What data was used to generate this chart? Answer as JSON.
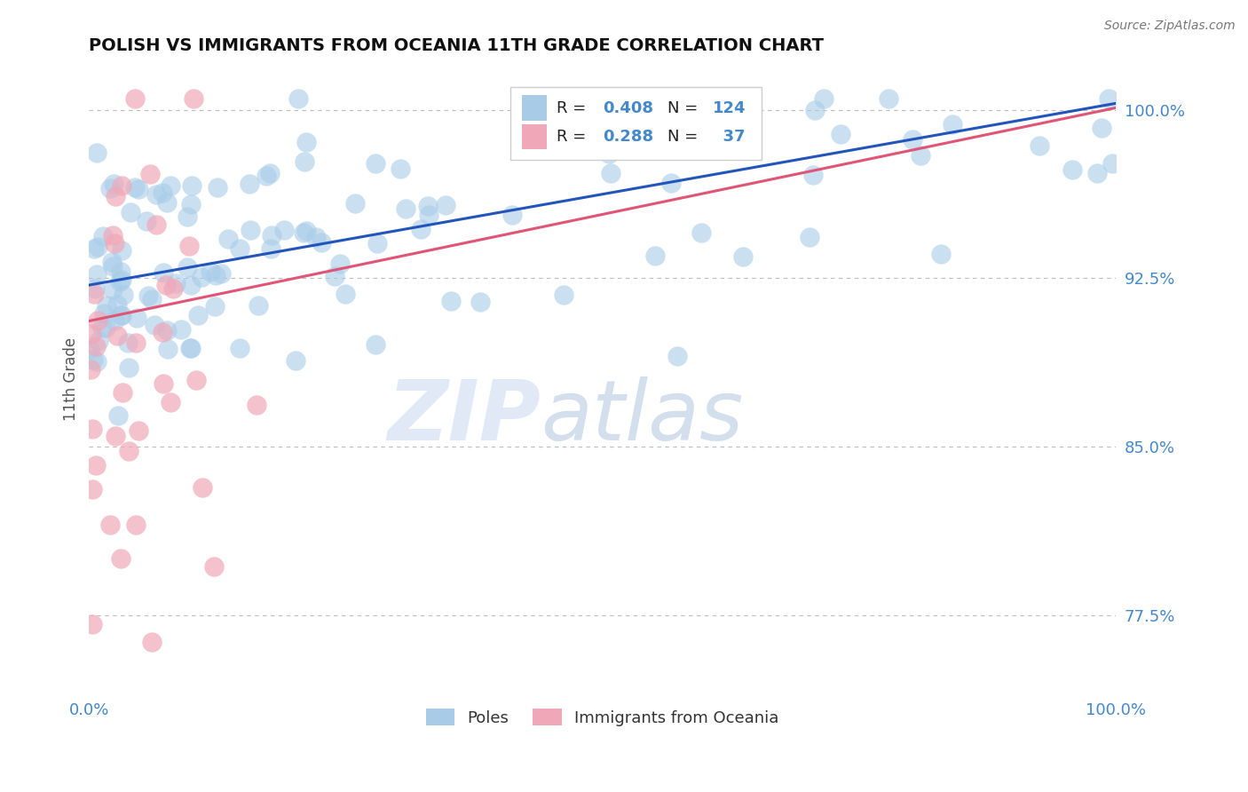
{
  "title": "POLISH VS IMMIGRANTS FROM OCEANIA 11TH GRADE CORRELATION CHART",
  "source_text": "Source: ZipAtlas.com",
  "ylabel": "11th Grade",
  "xlim": [
    0.0,
    1.0
  ],
  "ylim": [
    0.74,
    1.02
  ],
  "yticks": [
    0.775,
    0.85,
    0.925,
    1.0
  ],
  "ytick_labels": [
    "77.5%",
    "85.0%",
    "92.5%",
    "100.0%"
  ],
  "xtick_labels": [
    "0.0%",
    "100.0%"
  ],
  "xticks": [
    0.0,
    1.0
  ],
  "blue_color": "#a8cce8",
  "pink_color": "#f0a8b8",
  "blue_line_color": "#2255bb",
  "pink_line_color": "#e05575",
  "label_color": "#4488cc",
  "grid_color": "#bbbbbb",
  "R_blue": 0.408,
  "N_blue": 124,
  "R_pink": 0.288,
  "N_pink": 37,
  "legend_label_blue": "Poles",
  "legend_label_pink": "Immigrants from Oceania",
  "watermark_zip": "ZIP",
  "watermark_atlas": "atlas",
  "blue_line_x0": 0.0,
  "blue_line_y0": 0.922,
  "blue_line_x1": 1.0,
  "blue_line_y1": 1.003,
  "pink_line_x0": 0.0,
  "pink_line_y0": 0.906,
  "pink_line_x1": 1.0,
  "pink_line_y1": 1.001
}
